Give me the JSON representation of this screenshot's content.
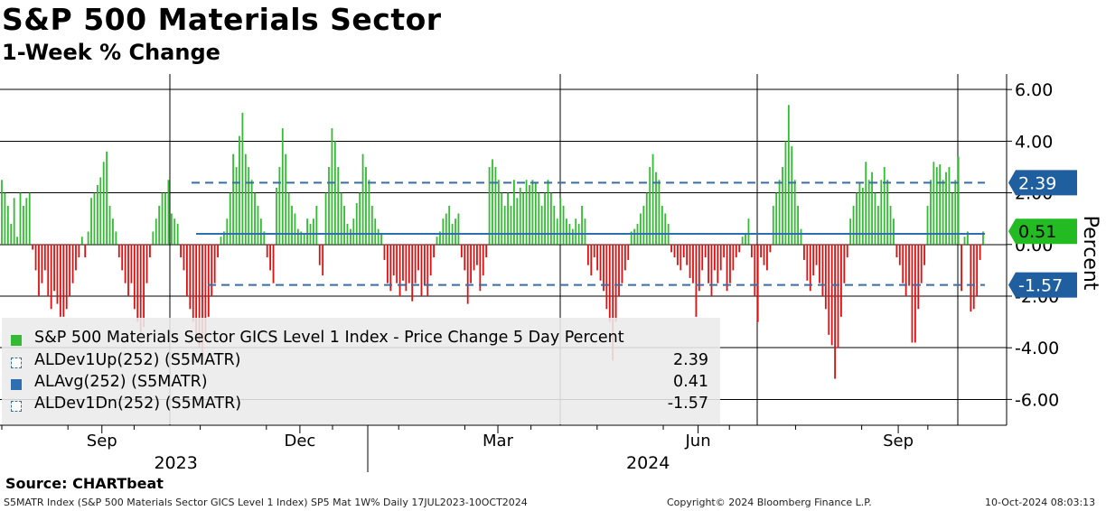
{
  "header": {
    "title": "S&P 500 Materials Sector",
    "subtitle": "1-Week % Change"
  },
  "legend": [
    {
      "label": "S&P 500 Materials Sector GICS Level 1 Index - Price Change 5 Day Percent",
      "value": "",
      "swatch": "bars"
    },
    {
      "label": "ALDev1Up(252) (S5MATR)",
      "value": "2.39",
      "swatch": "dash"
    },
    {
      "label": "ALAvg(252) (S5MATR)",
      "value": "0.41",
      "swatch": "solid"
    },
    {
      "label": "ALDev1Dn(252) (S5MATR)",
      "value": "-1.57",
      "swatch": "dash"
    }
  ],
  "source": "Source: CHARTbeat",
  "footer": {
    "left": "S5MATR Index (S&P 500 Materials Sector GICS Level 1 Index) SP5 Mat 1W%  Daily 17JUL2023-10OCT2024",
    "middle": "Copyright© 2024 Bloomberg Finance L.P.",
    "right": "10-Oct-2024 08:03:13"
  },
  "colors": {
    "positive": "#33bb33",
    "negative": "#dd1111",
    "band": "#3a6ea5",
    "avg": "#2f6fb0",
    "tag_blue": "#1f5f9f",
    "tag_green": "#22bb22"
  },
  "chart_data": {
    "type": "bar",
    "title": "S&P 500 Materials Sector",
    "subtitle": "1-Week % Change",
    "ylabel": "Percent",
    "ylim": [
      -7,
      6.6
    ],
    "yticks": [
      -6,
      -4,
      -2,
      0,
      2,
      4,
      6
    ],
    "ytick_labels": [
      "-6.00",
      "-4.00",
      "-2.00",
      "0.00",
      "2.00",
      "4.00",
      "6.00"
    ],
    "month_ticks": [
      {
        "label": "Sep",
        "days": 46
      },
      {
        "label": "Dec",
        "days": 137
      },
      {
        "label": "Mar",
        "days": 228
      },
      {
        "label": "Jun",
        "days": 320
      },
      {
        "label": "Sep",
        "days": 412
      }
    ],
    "year_labels": [
      {
        "label": "2023",
        "days": 80
      },
      {
        "label": "2024",
        "days": 297
      }
    ],
    "reference_lines": {
      "upper_dev": 2.39,
      "average": 0.41,
      "lower_dev": -1.57
    },
    "last_value": 0.51,
    "right_tags": [
      {
        "label": "2.39",
        "value": 2.39,
        "color": "blue"
      },
      {
        "label": "0.51",
        "value": 0.51,
        "color": "green"
      },
      {
        "label": "-1.57",
        "value": -1.57,
        "color": "blue"
      }
    ],
    "series": [
      {
        "name": "S&P 500 Materials Sector GICS Level 1 Index - Price Change 5 Day Percent",
        "values": [
          2.5,
          2.0,
          1.5,
          0.8,
          1.8,
          0.3,
          2.0,
          1.5,
          1.8,
          2.0,
          -0.2,
          -1.0,
          -2.0,
          -1.5,
          -1.0,
          -2.0,
          -2.5,
          -1.8,
          -2.3,
          -2.8,
          -2.8,
          -2.5,
          -2.0,
          -1.5,
          -1.0,
          -0.5,
          0.3,
          -0.5,
          0.5,
          1.8,
          2.0,
          2.3,
          2.6,
          3.2,
          3.6,
          1.5,
          1.0,
          0.5,
          -0.5,
          -1.0,
          -1.5,
          -2.0,
          -1.5,
          -2.5,
          -3.0,
          -3.5,
          -3.2,
          -1.5,
          -0.5,
          0.5,
          1.0,
          1.5,
          2.0,
          2.0,
          2.5,
          1.2,
          1.0,
          0.8,
          -0.5,
          -1.0,
          -2.0,
          -2.5,
          -3.0,
          -3.5,
          -4.0,
          -4.3,
          -3.6,
          -2.8,
          -2.0,
          -1.5,
          -0.5,
          0.3,
          0.5,
          1.0,
          2.0,
          3.5,
          3.0,
          4.2,
          5.1,
          3.5,
          3.0,
          2.5,
          2.0,
          1.5,
          1.0,
          0.5,
          -0.5,
          -1.0,
          -1.5,
          2.2,
          3.0,
          4.5,
          3.5,
          2.0,
          1.5,
          1.2,
          0.6,
          0.5,
          0.4,
          1.0,
          0.8,
          1.0,
          1.5,
          -0.8,
          -1.2,
          2.0,
          3.0,
          4.5,
          4.0,
          3.0,
          2.0,
          1.5,
          0.8,
          0.6,
          1.0,
          1.6,
          2.0,
          3.5,
          3.0,
          2.5,
          1.5,
          1.0,
          0.6,
          0.4,
          -0.6,
          -1.5,
          -1.8,
          -1.2,
          -1.5,
          -2.0,
          -1.4,
          -1.8,
          -1.5,
          -2.2,
          -1.5,
          -1.0,
          -2.0,
          -1.6,
          -2.0,
          -1.2,
          -0.5,
          0.3,
          0.5,
          1.0,
          1.2,
          1.5,
          0.8,
          1.0,
          1.2,
          -0.5,
          -1.0,
          -2.3,
          -1.5,
          -1.0,
          -0.8,
          -1.8,
          -1.2,
          -0.5,
          3.0,
          3.3,
          3.0,
          2.5,
          2.0,
          1.5,
          2.0,
          1.5,
          2.5,
          1.8,
          2.2,
          2.0,
          2.5,
          2.3,
          2.5,
          2.4,
          2.0,
          1.5,
          2.0,
          2.5,
          2.0,
          1.5,
          1.0,
          1.8,
          1.5,
          1.0,
          0.8,
          0.6,
          1.0,
          0.8,
          1.5,
          1.0,
          -0.8,
          -1.2,
          -0.5,
          -1.0,
          -1.4,
          -1.8,
          -2.5,
          -3.0,
          -4.5,
          -3.0,
          -2.0,
          -1.5,
          -1.0,
          -0.6,
          0.5,
          0.6,
          0.8,
          1.2,
          1.5,
          2.0,
          3.0,
          3.5,
          2.8,
          2.5,
          1.5,
          1.2,
          0.8,
          -0.3,
          -0.5,
          -0.8,
          -1.0,
          -0.5,
          -0.8,
          -1.3,
          -1.5,
          -2.8,
          -1.8,
          -1.0,
          -0.5,
          -1.5,
          -2.0,
          -1.0,
          -1.5,
          -1.0,
          -0.5,
          -1.8,
          -1.5,
          -1.0,
          -0.5,
          -0.3,
          0.3,
          0.4,
          1.0,
          -0.5,
          -2.0,
          -3.0,
          -0.5,
          -0.8,
          -1.0,
          -0.3,
          1.5,
          2.0,
          2.5,
          3.0,
          4.0,
          5.4,
          3.8,
          2.5,
          1.5,
          0.6,
          -0.6,
          -1.4,
          -1.8,
          -1.2,
          -0.8,
          -1.5,
          -2.0,
          -2.5,
          -3.5,
          -3.9,
          -5.2,
          -4.0,
          -2.8,
          -1.5,
          -0.5,
          1.0,
          1.5,
          2.0,
          2.4,
          2.2,
          3.2,
          2.5,
          2.8,
          2.0,
          1.5,
          2.5,
          3.0,
          2.5,
          1.5,
          1.0,
          -0.5,
          -0.8,
          -1.5,
          -2.0,
          -1.6,
          -3.8,
          -3.8,
          -2.5,
          -1.5,
          -0.8,
          1.5,
          2.5,
          3.2,
          3.0,
          3.1,
          2.5,
          2.8,
          3.0,
          2.0,
          2.5,
          3.4,
          -1.8,
          0.3,
          0.5,
          -2.6,
          -2.5,
          -2.0,
          -0.6,
          0.5
        ]
      }
    ]
  }
}
